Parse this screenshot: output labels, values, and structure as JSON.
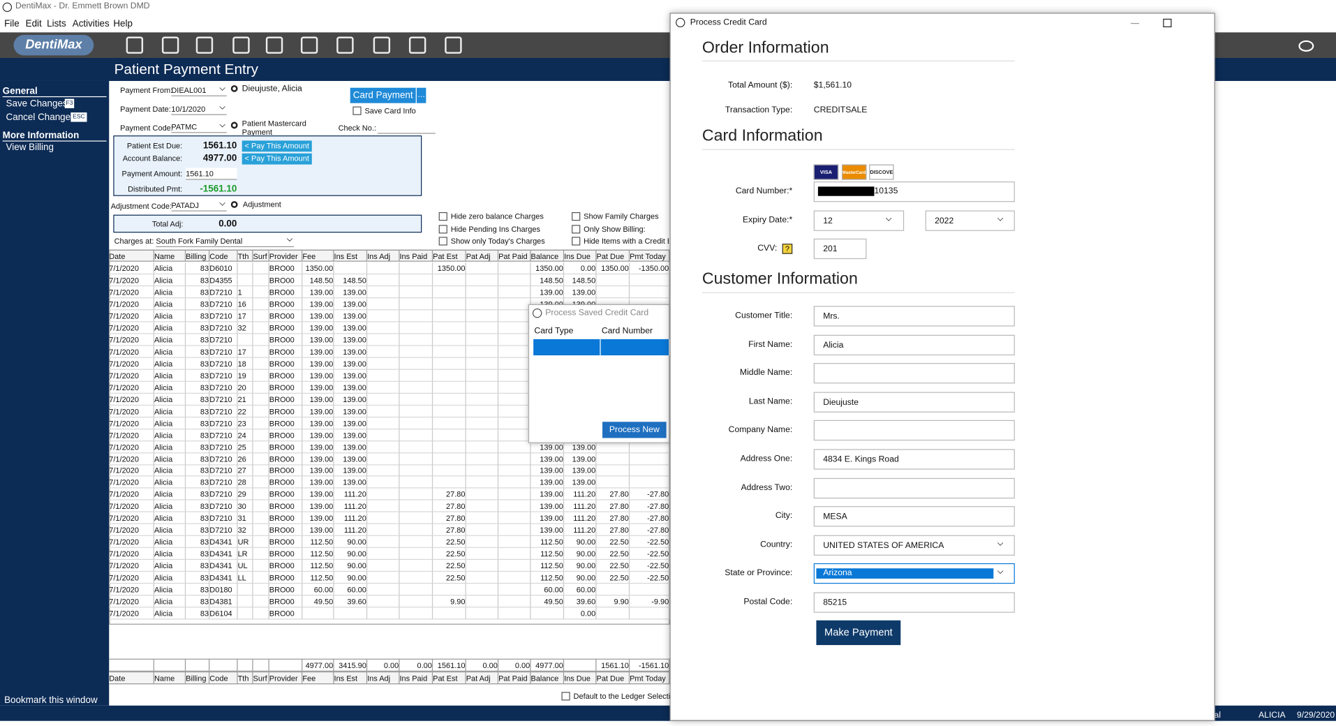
{
  "window_title": "DentiMax - Dr. Emmett Brown DMD",
  "menu": [
    "File",
    "Edit",
    "Lists",
    "Activities",
    "Help"
  ],
  "logo": "DentiMax",
  "page_title": "Patient Payment Entry",
  "sidebar": {
    "general": "General",
    "general_items": [
      "Save Changes",
      "Cancel Changes"
    ],
    "keys": [
      "F3",
      "ESC"
    ],
    "more": "More Information",
    "more_items": [
      "View Billing"
    ],
    "bookmark": "Bookmark this window"
  },
  "payment_form": {
    "payment_from_label": "Payment From:",
    "payment_from": "DIEAL001",
    "patient": "Dieujuste, Alicia",
    "payment_date_label": "Payment Date:",
    "payment_date": "10/1/2020",
    "payment_code_label": "Payment Code:",
    "payment_code": "PATMC",
    "payment_code_desc": "Patient Mastercard Payment",
    "card_payment": "Card Payment",
    "card_more": "...",
    "save_card_info": "Save Card Info",
    "check_no_label": "Check No.:",
    "est_due_label": "Patient Est Due:",
    "est_due": "1561.10",
    "pay_this": "< Pay This Amount",
    "balance_label": "Account Balance:",
    "balance": "4977.00",
    "amount_label": "Payment Amount:",
    "amount": "1561.10",
    "distributed_label": "Distributed Pmt:",
    "distributed": "-1561.10",
    "adj_code_label": "Adjustment Code:",
    "adj_code": "PATADJ",
    "adj_desc": "Adjustment",
    "total_adj_label": "Total Adj:",
    "total_adj": "0.00",
    "charges_at_label": "Charges at:",
    "charges_at": "South Fork Family Dental"
  },
  "options": [
    "Hide zero balance Charges",
    "Hide Pending Ins Charges",
    "Show only Today's Charges",
    "Show Family Charges",
    "Only Show Billing:",
    "Hide Items with a Credit B"
  ],
  "ledger_default": "Default to the Ledger Selecti",
  "table": {
    "columns": [
      "Date",
      "Name",
      "Billing",
      "Code",
      "Tth",
      "Surf",
      "Provider",
      "Fee",
      "Ins Est",
      "Ins Adj",
      "Ins Paid",
      "Pat Est",
      "Pat Adj",
      "Pat Paid",
      "Balance",
      "Ins Due",
      "Pat Due",
      "Pmt Today"
    ],
    "rows": [
      [
        "7/1/2020",
        "Alicia",
        "83",
        "D6010",
        null,
        null,
        "BRO00",
        "1350.00",
        null,
        null,
        null,
        "1350.00",
        null,
        null,
        "1350.00",
        "0.00",
        "1350.00",
        "-1350.00"
      ],
      [
        "7/1/2020",
        "Alicia",
        "83",
        "D4355",
        null,
        null,
        "BRO00",
        "148.50",
        "148.50",
        null,
        null,
        null,
        null,
        null,
        "148.50",
        "148.50",
        null,
        null
      ],
      [
        "7/1/2020",
        "Alicia",
        "83",
        "D7210",
        "1",
        null,
        "BRO00",
        "139.00",
        "139.00",
        null,
        null,
        null,
        null,
        null,
        "139.00",
        "139.00",
        null,
        null
      ],
      [
        "7/1/2020",
        "Alicia",
        "83",
        "D7210",
        "16",
        null,
        "BRO00",
        "139.00",
        "139.00",
        null,
        null,
        null,
        null,
        null,
        "139.00",
        "139.00",
        null,
        null
      ],
      [
        "7/1/2020",
        "Alicia",
        "83",
        "D7210",
        "17",
        null,
        "BRO00",
        "139.00",
        "139.00",
        null,
        null,
        null,
        null,
        null,
        null,
        null,
        null,
        null
      ],
      [
        "7/1/2020",
        "Alicia",
        "83",
        "D7210",
        "32",
        null,
        "BRO00",
        "139.00",
        "139.00",
        null,
        null,
        null,
        null,
        null,
        null,
        null,
        null,
        null
      ],
      [
        "7/1/2020",
        "Alicia",
        "83",
        "D7210",
        null,
        null,
        "BRO00",
        "139.00",
        "139.00",
        null,
        null,
        null,
        null,
        null,
        null,
        null,
        null,
        null
      ],
      [
        "7/1/2020",
        "Alicia",
        "83",
        "D7210",
        "17",
        null,
        "BRO00",
        "139.00",
        "139.00",
        null,
        null,
        null,
        null,
        null,
        null,
        null,
        null,
        null
      ],
      [
        "7/1/2020",
        "Alicia",
        "83",
        "D7210",
        "18",
        null,
        "BRO00",
        "139.00",
        "139.00",
        null,
        null,
        null,
        null,
        null,
        null,
        null,
        null,
        null
      ],
      [
        "7/1/2020",
        "Alicia",
        "83",
        "D7210",
        "19",
        null,
        "BRO00",
        "139.00",
        "139.00",
        null,
        null,
        null,
        null,
        null,
        null,
        null,
        null,
        null
      ],
      [
        "7/1/2020",
        "Alicia",
        "83",
        "D7210",
        "20",
        null,
        "BRO00",
        "139.00",
        "139.00",
        null,
        null,
        null,
        null,
        null,
        null,
        null,
        null,
        null
      ],
      [
        "7/1/2020",
        "Alicia",
        "83",
        "D7210",
        "21",
        null,
        "BRO00",
        "139.00",
        "139.00",
        null,
        null,
        null,
        null,
        null,
        null,
        null,
        null,
        null
      ],
      [
        "7/1/2020",
        "Alicia",
        "83",
        "D7210",
        "22",
        null,
        "BRO00",
        "139.00",
        "139.00",
        null,
        null,
        null,
        null,
        null,
        null,
        null,
        null,
        null
      ],
      [
        "7/1/2020",
        "Alicia",
        "83",
        "D7210",
        "23",
        null,
        "BRO00",
        "139.00",
        "139.00",
        null,
        null,
        null,
        null,
        null,
        null,
        null,
        null,
        null
      ],
      [
        "7/1/2020",
        "Alicia",
        "83",
        "D7210",
        "24",
        null,
        "BRO00",
        "139.00",
        "139.00",
        null,
        null,
        null,
        null,
        null,
        null,
        null,
        null,
        null
      ],
      [
        "7/1/2020",
        "Alicia",
        "83",
        "D7210",
        "25",
        null,
        "BRO00",
        "139.00",
        "139.00",
        null,
        null,
        null,
        null,
        null,
        "139.00",
        "139.00",
        null,
        null
      ],
      [
        "7/1/2020",
        "Alicia",
        "83",
        "D7210",
        "26",
        null,
        "BRO00",
        "139.00",
        "139.00",
        null,
        null,
        null,
        null,
        null,
        "139.00",
        "139.00",
        null,
        null
      ],
      [
        "7/1/2020",
        "Alicia",
        "83",
        "D7210",
        "27",
        null,
        "BRO00",
        "139.00",
        "139.00",
        null,
        null,
        null,
        null,
        null,
        "139.00",
        "139.00",
        null,
        null
      ],
      [
        "7/1/2020",
        "Alicia",
        "83",
        "D7210",
        "28",
        null,
        "BRO00",
        "139.00",
        "139.00",
        null,
        null,
        null,
        null,
        null,
        "139.00",
        "139.00",
        null,
        null
      ],
      [
        "7/1/2020",
        "Alicia",
        "83",
        "D7210",
        "29",
        null,
        "BRO00",
        "139.00",
        "111.20",
        null,
        null,
        "27.80",
        null,
        null,
        "139.00",
        "111.20",
        "27.80",
        "-27.80"
      ],
      [
        "7/1/2020",
        "Alicia",
        "83",
        "D7210",
        "30",
        null,
        "BRO00",
        "139.00",
        "111.20",
        null,
        null,
        "27.80",
        null,
        null,
        "139.00",
        "111.20",
        "27.80",
        "-27.80"
      ],
      [
        "7/1/2020",
        "Alicia",
        "83",
        "D7210",
        "31",
        null,
        "BRO00",
        "139.00",
        "111.20",
        null,
        null,
        "27.80",
        null,
        null,
        "139.00",
        "111.20",
        "27.80",
        "-27.80"
      ],
      [
        "7/1/2020",
        "Alicia",
        "83",
        "D7210",
        "32",
        null,
        "BRO00",
        "139.00",
        "111.20",
        null,
        null,
        "27.80",
        null,
        null,
        "139.00",
        "111.20",
        "27.80",
        "-27.80"
      ],
      [
        "7/1/2020",
        "Alicia",
        "83",
        "D4341",
        "UR",
        null,
        "BRO00",
        "112.50",
        "90.00",
        null,
        null,
        "22.50",
        null,
        null,
        "112.50",
        "90.00",
        "22.50",
        "-22.50"
      ],
      [
        "7/1/2020",
        "Alicia",
        "83",
        "D4341",
        "LR",
        null,
        "BRO00",
        "112.50",
        "90.00",
        null,
        null,
        "22.50",
        null,
        null,
        "112.50",
        "90.00",
        "22.50",
        "-22.50"
      ],
      [
        "7/1/2020",
        "Alicia",
        "83",
        "D4341",
        "UL",
        null,
        "BRO00",
        "112.50",
        "90.00",
        null,
        null,
        "22.50",
        null,
        null,
        "112.50",
        "90.00",
        "22.50",
        "-22.50"
      ],
      [
        "7/1/2020",
        "Alicia",
        "83",
        "D4341",
        "LL",
        null,
        "BRO00",
        "112.50",
        "90.00",
        null,
        null,
        "22.50",
        null,
        null,
        "112.50",
        "90.00",
        "22.50",
        "-22.50"
      ],
      [
        "7/1/2020",
        "Alicia",
        "83",
        "D0180",
        null,
        null,
        "BRO00",
        "60.00",
        "60.00",
        null,
        null,
        null,
        null,
        null,
        "60.00",
        "60.00",
        null,
        null
      ],
      [
        "7/1/2020",
        "Alicia",
        "83",
        "D4381",
        null,
        null,
        "BRO00",
        "49.50",
        "39.60",
        null,
        null,
        "9.90",
        null,
        null,
        "49.50",
        "39.60",
        "9.90",
        "-9.90"
      ],
      [
        "7/1/2020",
        "Alicia",
        "83",
        "D6104",
        null,
        null,
        "BRO00",
        null,
        null,
        null,
        null,
        null,
        null,
        null,
        null,
        "0.00",
        null,
        null
      ]
    ],
    "totals": [
      null,
      null,
      null,
      null,
      null,
      null,
      null,
      "4977.00",
      "3415.90",
      "0.00",
      "0.00",
      "1561.10",
      "0.00",
      "0.00",
      "4977.00",
      null,
      "1561.10",
      "-1561.10"
    ]
  },
  "saved_card_popup": {
    "title": "Process Saved Credit Card",
    "columns": [
      "Card Type",
      "Card Number"
    ],
    "button": "Process New"
  },
  "dialog": {
    "title": "Process Credit Card",
    "order_heading": "Order Information",
    "total_label": "Total Amount ($):",
    "total": "$1,561.10",
    "type_label": "Transaction Type:",
    "type": "CREDITSALE",
    "card_heading": "Card Information",
    "card_logos": [
      "VISA",
      "MasterCard",
      "DISCOVER"
    ],
    "card_number_label": "Card Number:*",
    "card_number": "10135",
    "expiry_label": "Expiry Date:*",
    "expiry_month": "12",
    "expiry_year": "2022",
    "cvv_label": "CVV:",
    "cvv_help": "?",
    "cvv": "201",
    "customer_heading": "Customer Information",
    "fields": [
      {
        "label": "Customer Title:",
        "value": "Mrs."
      },
      {
        "label": "First Name:",
        "value": "Alicia"
      },
      {
        "label": "Middle Name:"
      },
      {
        "label": "Last Name:",
        "value": "Dieujuste"
      },
      {
        "label": "Company Name:"
      },
      {
        "label": "Address One:",
        "value": "4834 E. Kings Road"
      },
      {
        "label": "Address Two:"
      },
      {
        "label": "City:",
        "value": "MESA"
      },
      {
        "label": "Country:",
        "value": "UNITED STATES OF AMERICA"
      },
      {
        "label": "State or Province:",
        "value": "Arizona"
      },
      {
        "label": "Postal Code:",
        "value": "85215"
      }
    ],
    "button": "Make Payment"
  },
  "status": {
    "left": "al",
    "user": "ALICIA",
    "date": "9/29/2020"
  }
}
